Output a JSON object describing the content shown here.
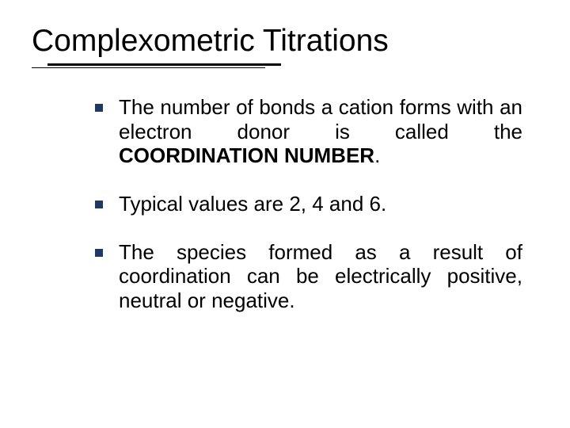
{
  "title": "Complexometric Titrations",
  "bullet_marker_color": "#1f3864",
  "text_color": "#000000",
  "background_color": "#ffffff",
  "title_fontsize": 39,
  "body_fontsize": 26,
  "bullets": [
    {
      "pre": "The number of bonds a cation forms with an electron donor is called the ",
      "bold": "COORDINATION NUMBER",
      "post": "."
    },
    {
      "pre": "Typical values are 2, 4 and 6.",
      "bold": "",
      "post": ""
    },
    {
      "pre": "The species formed as a result of coordination can be electrically positive, neutral or negative.",
      "bold": "",
      "post": ""
    }
  ]
}
